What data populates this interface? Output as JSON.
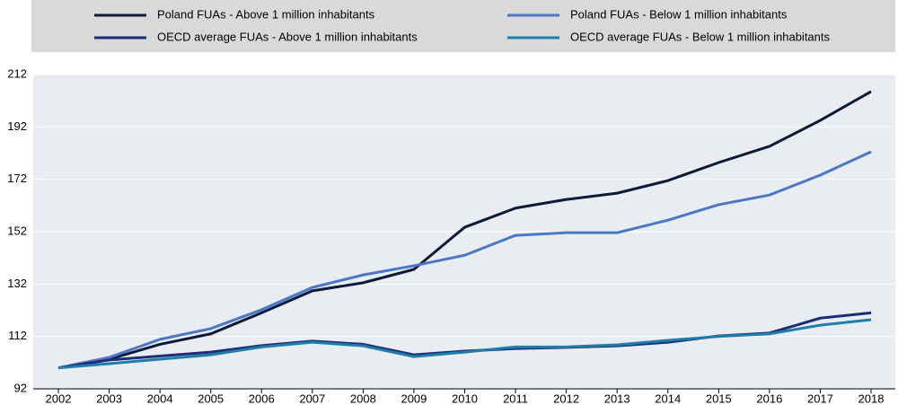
{
  "chart_data": {
    "type": "line",
    "x": [
      "2002",
      "2003",
      "2004",
      "2005",
      "2006",
      "2007",
      "2008",
      "2009",
      "2010",
      "2011",
      "2012",
      "2013",
      "2014",
      "2015",
      "2016",
      "2017",
      "2018"
    ],
    "series": [
      {
        "name": "Poland FUAs - Above 1 million inhabitants",
        "color": "#0c1a3a",
        "values": [
          100,
          103.3,
          109,
          113,
          121,
          129.4,
          132.5,
          137.6,
          153.7,
          161,
          164.3,
          166.7,
          171.5,
          178.4,
          184.6,
          194.5,
          205.5
        ]
      },
      {
        "name": "Poland FUAs - Below 1 million inhabitants",
        "color": "#4a78c6",
        "values": [
          100,
          104,
          110.9,
          115,
          122.2,
          130.7,
          135.5,
          139,
          143,
          150.6,
          151.6,
          151.6,
          156.4,
          162.3,
          166,
          173.6,
          182.5
        ]
      },
      {
        "name": "OECD average FUAs - Above 1 million inhabitants",
        "color": "#1c2d78",
        "values": [
          100,
          103,
          104.5,
          106,
          108.5,
          110.2,
          109,
          105,
          106.4,
          107.4,
          107.8,
          108.4,
          109.8,
          112.2,
          113.3,
          119,
          121
        ]
      },
      {
        "name": "OECD average FUAs - Below 1 million inhabitants",
        "color": "#1f7ea8",
        "values": [
          100,
          101.6,
          103.3,
          105,
          108,
          109.8,
          108.4,
          104.3,
          106,
          108,
          108,
          108.8,
          110.5,
          112,
          113,
          116.3,
          118.4
        ]
      }
    ],
    "ylim": [
      92,
      212
    ],
    "yticks": [
      92,
      112,
      132,
      152,
      172,
      192,
      212
    ],
    "grid": true
  }
}
